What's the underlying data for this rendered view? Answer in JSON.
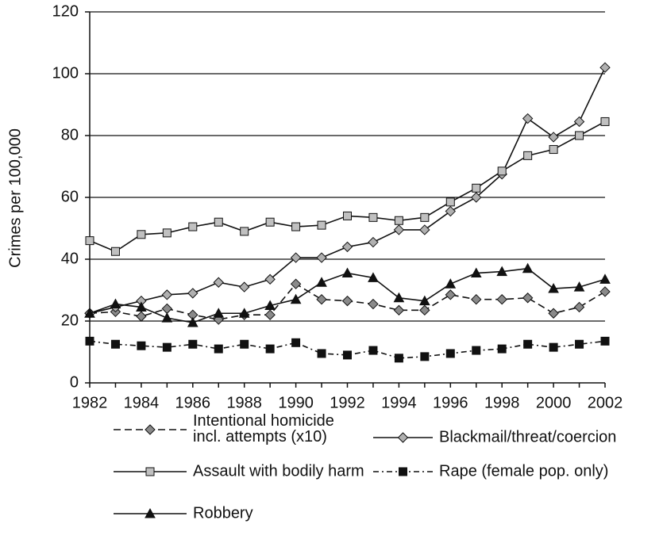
{
  "chart_data": {
    "type": "line",
    "y_label": "Crimes per 100,000",
    "x": [
      1982,
      1983,
      1984,
      1985,
      1986,
      1987,
      1988,
      1989,
      1990,
      1991,
      1992,
      1993,
      1994,
      1995,
      1996,
      1997,
      1998,
      1999,
      2000,
      2001,
      2002
    ],
    "xlim": [
      1982,
      2002
    ],
    "xticks": [
      1982,
      1984,
      1986,
      1988,
      1990,
      1992,
      1994,
      1996,
      1998,
      2000,
      2002
    ],
    "ylim": [
      0,
      120
    ],
    "yticks": [
      0,
      20,
      40,
      60,
      80,
      100,
      120
    ],
    "grid": true,
    "series": [
      {
        "name": "Intentional homicide\nincl. attempts (x10)",
        "color": "#8a8a8a",
        "line_style": "dashed",
        "marker": "diamond",
        "values": [
          22.5,
          23,
          21.5,
          24,
          22,
          20.5,
          22,
          22,
          32,
          27,
          26.5,
          25.5,
          23.5,
          23.5,
          28.5,
          27,
          27,
          27.5,
          22.5,
          24.5,
          29.5
        ]
      },
      {
        "name": "Blackmail/threat/coercion",
        "color": "#b0b0b0",
        "line_style": "solid",
        "marker": "diamond",
        "values": [
          22.5,
          24.5,
          26.5,
          28.5,
          29,
          32.5,
          31,
          33.5,
          40.5,
          40.5,
          44,
          45.5,
          49.5,
          49.5,
          55.5,
          60,
          67.5,
          85.5,
          79.5,
          84.5,
          102
        ]
      },
      {
        "name": "Assault with bodily harm",
        "color": "#c0c0c0",
        "line_style": "solid",
        "marker": "square",
        "values": [
          46,
          42.5,
          48,
          48.5,
          50.5,
          52,
          49,
          52,
          50.5,
          51,
          54,
          53.5,
          52.5,
          53.5,
          58.5,
          63,
          68.5,
          73.5,
          75.5,
          80,
          84.5
        ]
      },
      {
        "name": "Rape (female pop. only)",
        "color": "#111111",
        "line_style": "dashdot",
        "marker": "square",
        "values": [
          13.5,
          12.5,
          12,
          11.5,
          12.5,
          11,
          12.5,
          11,
          13,
          9.5,
          9,
          10.5,
          8,
          8.5,
          9.5,
          10.5,
          11,
          12.5,
          11.5,
          12.5,
          13.5
        ]
      },
      {
        "name": "Robbery",
        "color": "#111111",
        "line_style": "solid",
        "marker": "triangle",
        "values": [
          22.5,
          25.5,
          24.5,
          21,
          19.5,
          22.5,
          22.5,
          25,
          27,
          32.5,
          35.5,
          34,
          27.5,
          26.5,
          32,
          35.5,
          36,
          37,
          30.5,
          31,
          33.5
        ]
      }
    ]
  }
}
